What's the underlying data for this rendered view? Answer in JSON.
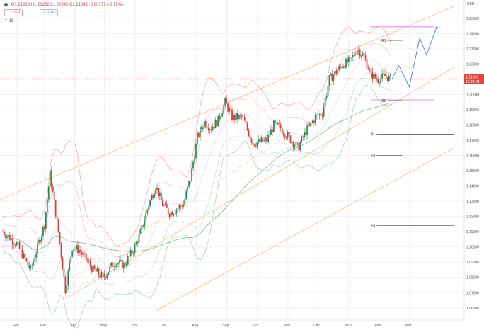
{
  "legend": {
    "ohlc": "O1.21218 H1.21292 L1.20945 C1.21042 -0.00177 (-0.15%)",
    "badge_sell": "1.21019",
    "badge_mid": "1.1",
    "badge_buy": "1.21047",
    "interval": "16"
  },
  "colors": {
    "up": "#2e8b57",
    "down": "#d9403a",
    "bb_outer": "#f4a3a0",
    "bb_inner": "#9fd3a8",
    "ma": "#7fb98a",
    "channel": "#f7c79b",
    "pivot": "#444444",
    "resistance_band": "#e6a6e8",
    "projection": "#4a7fd0",
    "price_tag": "#e0473f"
  },
  "chart_data": {
    "type": "candlestick",
    "title": "",
    "xlabel": "",
    "ylabel": "",
    "x_ticks": [
      "Feb",
      "Mar",
      "Apr",
      "May",
      "Jun",
      "Jul",
      "Aug",
      "Sep",
      "Oct",
      "Nov",
      "Dec",
      "2021",
      "Feb",
      "Mar"
    ],
    "y_ticks": [
      1.06,
      1.07,
      1.08,
      1.09,
      1.1,
      1.11,
      1.12,
      1.13,
      1.14,
      1.15,
      1.16,
      1.17,
      1.18,
      1.19,
      1.2,
      1.21,
      1.22,
      1.23,
      1.24,
      1.25
    ],
    "y_tick_labels": [
      "1.06000",
      "1.07000",
      "1.08000",
      "1.09000",
      "1.10000",
      "1.11000",
      "1.12000",
      "1.13000",
      "1.14000",
      "1.15000",
      "1.16000",
      "1.17000",
      "1.18000",
      "1.19000",
      "1.20000",
      "1.21000",
      "1.22000",
      "1.23000",
      "1.24000",
      "1.25000"
    ],
    "y_axis_title": "USD",
    "ylim": [
      1.052,
      1.262
    ],
    "last_price": "1.21042",
    "last_time": "12:24:34",
    "price_path": [
      {
        "week": 0,
        "price": 1.11
      },
      {
        "week": 2,
        "price": 1.102
      },
      {
        "week": 4,
        "price": 1.085
      },
      {
        "week": 6,
        "price": 1.115
      },
      {
        "week": 6.8,
        "price": 1.148
      },
      {
        "week": 8,
        "price": 1.11
      },
      {
        "week": 9,
        "price": 1.072
      },
      {
        "week": 10,
        "price": 1.1
      },
      {
        "week": 11,
        "price": 1.098
      },
      {
        "week": 13,
        "price": 1.085
      },
      {
        "week": 14.5,
        "price": 1.08
      },
      {
        "week": 16,
        "price": 1.09
      },
      {
        "week": 17.5,
        "price": 1.088
      },
      {
        "week": 19,
        "price": 1.1
      },
      {
        "week": 20,
        "price": 1.112
      },
      {
        "week": 21,
        "price": 1.128
      },
      {
        "week": 22,
        "price": 1.14
      },
      {
        "week": 23,
        "price": 1.128
      },
      {
        "week": 24,
        "price": 1.122
      },
      {
        "week": 26,
        "price": 1.128
      },
      {
        "week": 27,
        "price": 1.145
      },
      {
        "week": 28,
        "price": 1.172
      },
      {
        "week": 29,
        "price": 1.182
      },
      {
        "week": 30,
        "price": 1.178
      },
      {
        "week": 31,
        "price": 1.183
      },
      {
        "week": 32,
        "price": 1.195
      },
      {
        "week": 33,
        "price": 1.185
      },
      {
        "week": 34.5,
        "price": 1.185
      },
      {
        "week": 36,
        "price": 1.168
      },
      {
        "week": 38,
        "price": 1.17
      },
      {
        "week": 39,
        "price": 1.18
      },
      {
        "week": 40,
        "price": 1.178
      },
      {
        "week": 41.5,
        "price": 1.17
      },
      {
        "week": 42.5,
        "price": 1.165
      },
      {
        "week": 43.5,
        "price": 1.175
      },
      {
        "week": 45,
        "price": 1.185
      },
      {
        "week": 46,
        "price": 1.188
      },
      {
        "week": 47,
        "price": 1.21
      },
      {
        "week": 48,
        "price": 1.215
      },
      {
        "week": 49,
        "price": 1.22
      },
      {
        "week": 50,
        "price": 1.222
      },
      {
        "week": 51,
        "price": 1.23
      },
      {
        "week": 52,
        "price": 1.225
      },
      {
        "week": 53,
        "price": 1.213
      },
      {
        "week": 54,
        "price": 1.21
      },
      {
        "week": 55,
        "price": 1.212
      },
      {
        "week": 56,
        "price": 1.21
      }
    ],
    "pivots": [
      {
        "label": "R1",
        "value": 1.2355,
        "week_from": 54.5,
        "week_to": 57.5
      },
      {
        "label": "P",
        "value": 1.212,
        "week_from": 53,
        "week_to": 57.5
      },
      {
        "label": "S1",
        "value": 1.196,
        "week_from": 54.5,
        "week_to": 57.5
      },
      {
        "label": "P",
        "value": 1.174,
        "week_from": 53,
        "week_to": 65
      },
      {
        "label": "S1",
        "value": 1.16,
        "week_from": 53,
        "week_to": 57.5
      },
      {
        "label": "S1",
        "value": 1.114,
        "week_from": 53,
        "week_to": 65
      }
    ],
    "resistance_band": {
      "from": 1.2445,
      "week_from": 53,
      "week_to": 62
    },
    "support_band": {
      "value": 1.1965,
      "week_from": 53,
      "week_to": 62
    },
    "projection": [
      {
        "week": 56,
        "price": 1.21
      },
      {
        "week": 57,
        "price": 1.219
      },
      {
        "week": 58.5,
        "price": 1.205
      },
      {
        "week": 60,
        "price": 1.237
      },
      {
        "week": 61,
        "price": 1.226
      },
      {
        "week": 62.5,
        "price": 1.245
      }
    ],
    "channels": [
      {
        "name": "",
        "from": {
          "week": -1,
          "price": 1.13
        },
        "to": {
          "week": 65,
          "price": 1.258
        }
      },
      {
        "name": "",
        "from": {
          "week": 9,
          "price": 1.066
        },
        "to": {
          "week": 65,
          "price": 1.218
        }
      },
      {
        "name": "",
        "from": {
          "week": 22,
          "price": 1.058
        },
        "to": {
          "week": 65,
          "price": 1.165
        }
      }
    ]
  }
}
